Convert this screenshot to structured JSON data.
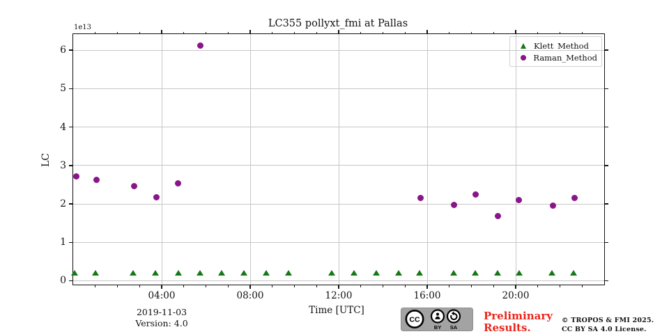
{
  "figure": {
    "title": "LC355 pollyxt_fmi at Pallas",
    "offset_label": "1e13",
    "ylabel": "LC",
    "xlabel": "Time [UTC]",
    "date_label": "2019-11-03",
    "version_label": "Version: 4.0"
  },
  "legend": [
    {
      "label": "Klett_Method",
      "marker": "triangle",
      "color": "#147814"
    },
    {
      "label": "Raman_Method",
      "marker": "circle",
      "color": "#8a158a"
    }
  ],
  "footer": {
    "preliminary_line1": "Preliminary",
    "preliminary_line2": "Results.",
    "copyright_line1": "© TROPOS & FMI 2025.",
    "copyright_line2": "CC BY SA 4.0 License.",
    "badge_cc": "CC",
    "badge_by": "BY",
    "badge_sa": "SA"
  },
  "colors": {
    "klett_green": "#147814",
    "raman_purple": "#8a158a",
    "grid_gray": "#c6c6c6",
    "preliminary_red": "#e8281e",
    "badge_gray": "#a3a3a3"
  },
  "chart_data": {
    "type": "scatter",
    "title": "LC355 pollyxt_fmi at Pallas",
    "xlabel": "Time [UTC]",
    "ylabel": "LC",
    "y_scale_factor": "1e13",
    "grid": true,
    "legend_position": "upper right",
    "xlim_hours": [
      0,
      24
    ],
    "ylim": [
      -0.1,
      6.42
    ],
    "x_tick_hours": [
      4,
      8,
      12,
      16,
      20
    ],
    "x_ticks_labeled": [
      "04:00",
      "08:00",
      "12:00",
      "16:00",
      "20:00"
    ],
    "x_minor_tick_hours": [
      1,
      2,
      3,
      4,
      5,
      6,
      7,
      8,
      9,
      10,
      11,
      12,
      13,
      14,
      15,
      16,
      17,
      18,
      19,
      20,
      21,
      22,
      23
    ],
    "y_ticks": [
      0,
      1,
      2,
      3,
      4,
      5,
      6
    ],
    "series": [
      {
        "name": "Klett_Method",
        "marker": "triangle",
        "color": "#147814",
        "points": [
          {
            "t": 0.07,
            "v": 0.2
          },
          {
            "t": 1.0,
            "v": 0.2
          },
          {
            "t": 2.72,
            "v": 0.2
          },
          {
            "t": 3.72,
            "v": 0.2
          },
          {
            "t": 4.75,
            "v": 0.2
          },
          {
            "t": 5.72,
            "v": 0.2
          },
          {
            "t": 6.72,
            "v": 0.2
          },
          {
            "t": 7.72,
            "v": 0.2
          },
          {
            "t": 8.72,
            "v": 0.2
          },
          {
            "t": 9.72,
            "v": 0.2
          },
          {
            "t": 11.7,
            "v": 0.2
          },
          {
            "t": 12.7,
            "v": 0.2
          },
          {
            "t": 13.7,
            "v": 0.2
          },
          {
            "t": 14.7,
            "v": 0.2
          },
          {
            "t": 15.65,
            "v": 0.2
          },
          {
            "t": 17.2,
            "v": 0.2
          },
          {
            "t": 18.18,
            "v": 0.2
          },
          {
            "t": 19.18,
            "v": 0.2
          },
          {
            "t": 20.17,
            "v": 0.2
          },
          {
            "t": 21.65,
            "v": 0.2
          },
          {
            "t": 22.62,
            "v": 0.2
          }
        ]
      },
      {
        "name": "Raman_Method",
        "marker": "circle",
        "color": "#8a158a",
        "points": [
          {
            "t": 0.13,
            "v": 2.71
          },
          {
            "t": 1.05,
            "v": 2.62
          },
          {
            "t": 2.75,
            "v": 2.46
          },
          {
            "t": 3.75,
            "v": 2.18
          },
          {
            "t": 4.75,
            "v": 2.54
          },
          {
            "t": 5.74,
            "v": 6.12
          },
          {
            "t": 15.7,
            "v": 2.15
          },
          {
            "t": 17.2,
            "v": 1.98
          },
          {
            "t": 18.2,
            "v": 2.25
          },
          {
            "t": 19.2,
            "v": 1.68
          },
          {
            "t": 20.15,
            "v": 2.1
          },
          {
            "t": 21.7,
            "v": 1.95
          },
          {
            "t": 22.65,
            "v": 2.16
          }
        ]
      }
    ]
  }
}
